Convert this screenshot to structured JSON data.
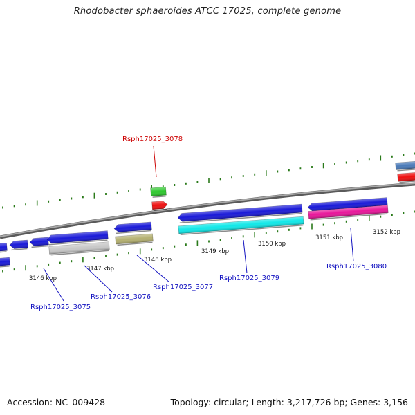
{
  "title": "Rhodobacter sphaeroides ATCC 17025, complete genome",
  "footer": {
    "accession": "Accession: NC_009428",
    "topology": "Topology: circular; Length: 3,217,726 bp; Genes: 3,156"
  },
  "scale_labels": [
    "3146 kbp",
    "3147 kbp",
    "3148 kbp",
    "3149 kbp",
    "3150 kbp",
    "3151 kbp",
    "3152 kbp"
  ],
  "gene_labels": [
    {
      "name": "Rsph17025_3075",
      "highlighted": false
    },
    {
      "name": "Rsph17025_3076",
      "highlighted": false
    },
    {
      "name": "Rsph17025_3077",
      "highlighted": false
    },
    {
      "name": "Rsph17025_3078",
      "highlighted": true
    },
    {
      "name": "Rsph17025_3079",
      "highlighted": false
    },
    {
      "name": "Rsph17025_3080",
      "highlighted": false
    }
  ],
  "colors": {
    "backbone": "#808080",
    "tick": "#2a7a1a",
    "label": "#1010c0",
    "highlight_label": "#cc0000",
    "blue": "#1a1ad8",
    "cyan": "#10e8e8",
    "magenta": "#e8169a",
    "gray": "#c8c8c8",
    "olive": "#b4b070",
    "green": "#2ec82e",
    "red": "#ee1010",
    "steel": "#4a7ab8"
  }
}
